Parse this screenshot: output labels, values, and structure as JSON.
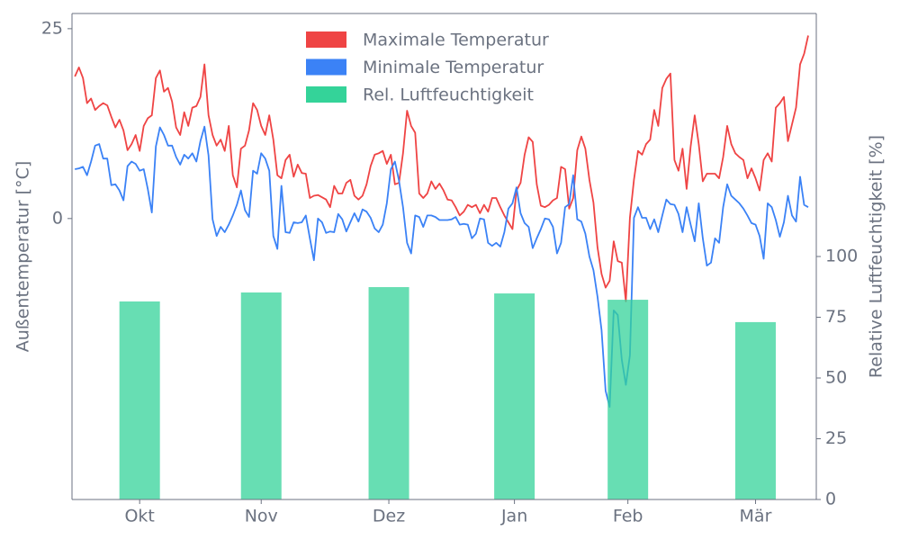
{
  "chart_data": {
    "type": "line",
    "y_label": "Außentemperatur [°C]",
    "y2_label": "Relative Luftfeuchtigkeit [%]",
    "xlim": [
      -0.7,
      183
    ],
    "xticks": [
      {
        "value": 16,
        "label": "Okt"
      },
      {
        "value": 46,
        "label": "Nov"
      },
      {
        "value": 77.5,
        "label": "Dez"
      },
      {
        "value": 108.5,
        "label": "Jan"
      },
      {
        "value": 136.5,
        "label": "Feb"
      },
      {
        "value": 168,
        "label": "Mär"
      }
    ],
    "ylim": [
      -37,
      27
    ],
    "yticks": [
      0,
      25
    ],
    "y2lim": [
      0,
      200
    ],
    "y2ticks": [
      0,
      25,
      50,
      75,
      100
    ],
    "legend": "upper center",
    "series": [
      {
        "name": "Maximale Temperatur",
        "color": "#ef4444",
        "type": "line",
        "values": [
          18.7,
          19.9,
          18.5,
          15.2,
          15.8,
          14.3,
          14.8,
          15.2,
          14.9,
          13.4,
          12.0,
          13.0,
          11.6,
          9.0,
          9.8,
          11.0,
          8.9,
          12.2,
          13.2,
          13.6,
          18.5,
          19.5,
          16.7,
          17.2,
          15.4,
          12.0,
          11.0,
          14.0,
          12.2,
          14.6,
          14.8,
          16.0,
          20.3,
          13.6,
          11.0,
          9.6,
          10.4,
          8.9,
          12.2,
          5.7,
          4.1,
          9.2,
          9.6,
          11.6,
          15.2,
          14.3,
          12.2,
          11.0,
          13.6,
          10.4,
          5.7,
          5.3,
          7.7,
          8.4,
          5.5,
          7.1,
          6.0,
          5.9,
          2.7,
          3.0,
          3.1,
          2.8,
          2.5,
          1.5,
          4.3,
          3.3,
          3.3,
          4.7,
          5.1,
          3.0,
          2.5,
          3.0,
          4.5,
          6.9,
          8.4,
          8.6,
          8.9,
          7.2,
          8.4,
          4.5,
          4.7,
          8.6,
          14.2,
          12.2,
          11.3,
          3.3,
          2.7,
          3.3,
          4.9,
          3.9,
          4.6,
          3.7,
          2.5,
          2.4,
          1.5,
          0.4,
          0.9,
          1.8,
          1.5,
          1.8,
          0.7,
          1.8,
          0.9,
          2.7,
          2.7,
          1.5,
          0.4,
          -0.5,
          -1.4,
          3.7,
          4.7,
          8.4,
          10.7,
          10.1,
          4.5,
          1.7,
          1.5,
          1.8,
          2.4,
          2.7,
          6.8,
          6.5,
          1.3,
          2.7,
          9.0,
          10.8,
          9.2,
          5.1,
          2.1,
          -3.8,
          -7.3,
          -9.1,
          -8.2,
          -3.0,
          -5.6,
          -5.8,
          -10.9,
          0.1,
          5.1,
          8.9,
          8.4,
          9.8,
          10.4,
          14.3,
          12.2,
          17.2,
          18.4,
          19.1,
          7.7,
          6.3,
          9.2,
          3.9,
          9.5,
          13.6,
          9.8,
          4.9,
          5.9,
          5.9,
          5.9,
          5.3,
          8.1,
          12.2,
          9.8,
          8.6,
          8.1,
          7.7,
          5.3,
          6.6,
          5.3,
          3.7,
          7.7,
          8.6,
          7.5,
          14.6,
          15.2,
          16.0,
          10.2,
          12.4,
          14.6,
          20.3,
          21.7,
          24.1
        ]
      },
      {
        "name": "Minimale Temperatur",
        "color": "#3b82f6",
        "type": "line",
        "values": [
          6.5,
          6.6,
          6.8,
          5.7,
          7.5,
          9.6,
          9.8,
          7.9,
          7.9,
          4.4,
          4.5,
          3.7,
          2.4,
          6.9,
          7.5,
          7.2,
          6.3,
          6.5,
          3.9,
          0.8,
          9.5,
          12.0,
          11.0,
          9.6,
          9.6,
          8.1,
          7.1,
          8.4,
          7.9,
          8.6,
          7.5,
          10.2,
          12.1,
          8.3,
          -0.1,
          -2.3,
          -1.1,
          -1.8,
          -0.8,
          0.4,
          1.8,
          3.7,
          1.1,
          0.2,
          6.3,
          5.9,
          8.6,
          7.9,
          6.3,
          -2.3,
          -4.0,
          4.3,
          -1.8,
          -1.9,
          -0.5,
          -0.6,
          -0.5,
          0.4,
          -2.6,
          -5.5,
          0.0,
          -0.5,
          -1.9,
          -1.7,
          -1.8,
          0.6,
          -0.1,
          -1.7,
          -0.5,
          0.7,
          -0.4,
          1.2,
          0.9,
          0.1,
          -1.3,
          -1.8,
          -0.8,
          2.0,
          6.5,
          7.5,
          5.0,
          1.5,
          -3.2,
          -4.6,
          0.4,
          0.2,
          -1.1,
          0.4,
          0.4,
          0.2,
          -0.2,
          -0.2,
          -0.2,
          -0.1,
          0.2,
          -0.8,
          -0.7,
          -0.8,
          -2.6,
          -2.0,
          0.0,
          -0.1,
          -3.2,
          -3.6,
          -3.2,
          -3.7,
          -1.8,
          1.3,
          2.0,
          4.1,
          0.7,
          -0.6,
          -1.1,
          -3.9,
          -2.6,
          -1.4,
          0.0,
          -0.1,
          -1.1,
          -4.6,
          -3.2,
          1.5,
          1.9,
          5.7,
          -0.1,
          -0.4,
          -2.0,
          -5.0,
          -6.8,
          -10.3,
          -14.7,
          -22.7,
          -24.8,
          -12.1,
          -12.7,
          -18.6,
          -21.9,
          -18.0,
          0.1,
          1.5,
          0.1,
          0.1,
          -1.4,
          -0.1,
          -1.8,
          0.4,
          2.5,
          1.9,
          1.8,
          0.6,
          -1.8,
          1.5,
          -0.8,
          -3.0,
          2.0,
          -2.6,
          -6.2,
          -5.8,
          -2.6,
          -3.2,
          1.5,
          4.5,
          3.0,
          2.5,
          2.0,
          1.3,
          0.4,
          -0.6,
          -0.8,
          -2.3,
          -5.3,
          2.0,
          1.5,
          -0.2,
          -2.4,
          -0.5,
          3.0,
          0.4,
          -0.4,
          5.5,
          1.8,
          1.5
        ]
      },
      {
        "name": "Rel. Luftfeuchtigkeit",
        "color": "#34d399",
        "type": "bar",
        "axis": "y2",
        "values": [
          81.5,
          85.2,
          87.4,
          84.8,
          82.2,
          73
        ]
      }
    ]
  }
}
